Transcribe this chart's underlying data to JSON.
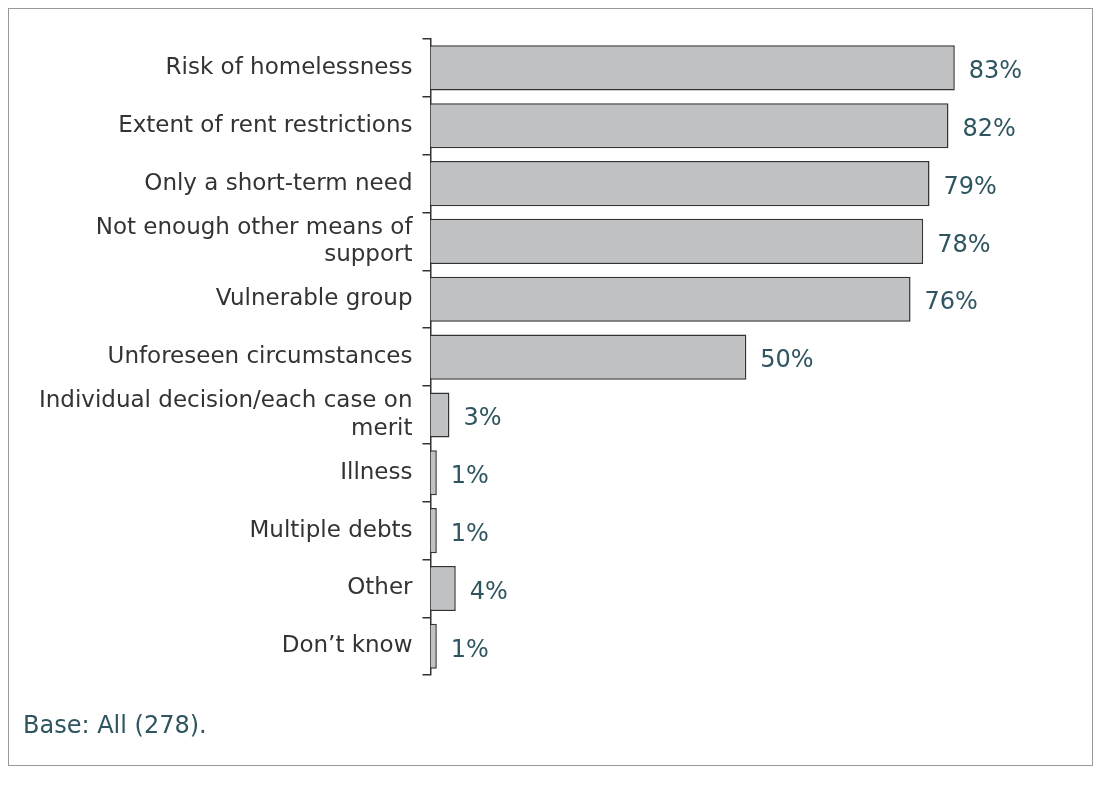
{
  "chart_data": {
    "type": "bar",
    "orientation": "horizontal",
    "categories": [
      "Risk of homelessness",
      "Extent of rent restrictions",
      "Only a short-term need",
      "Not enough other means of support",
      "Vulnerable group",
      "Unforeseen circumstances",
      "Individual decision/each case on merit",
      "Illness",
      "Multiple debts",
      "Other",
      "Don’t know"
    ],
    "values": [
      83,
      82,
      79,
      78,
      76,
      50,
      3,
      1,
      1,
      4,
      1
    ],
    "value_labels": [
      "83%",
      "82%",
      "79%",
      "78%",
      "76%",
      "50%",
      "3%",
      "1%",
      "1%",
      "4%",
      "1%"
    ],
    "color": "#c0c1c3",
    "legend": false,
    "annotations": [
      "Base: All (278)."
    ]
  }
}
